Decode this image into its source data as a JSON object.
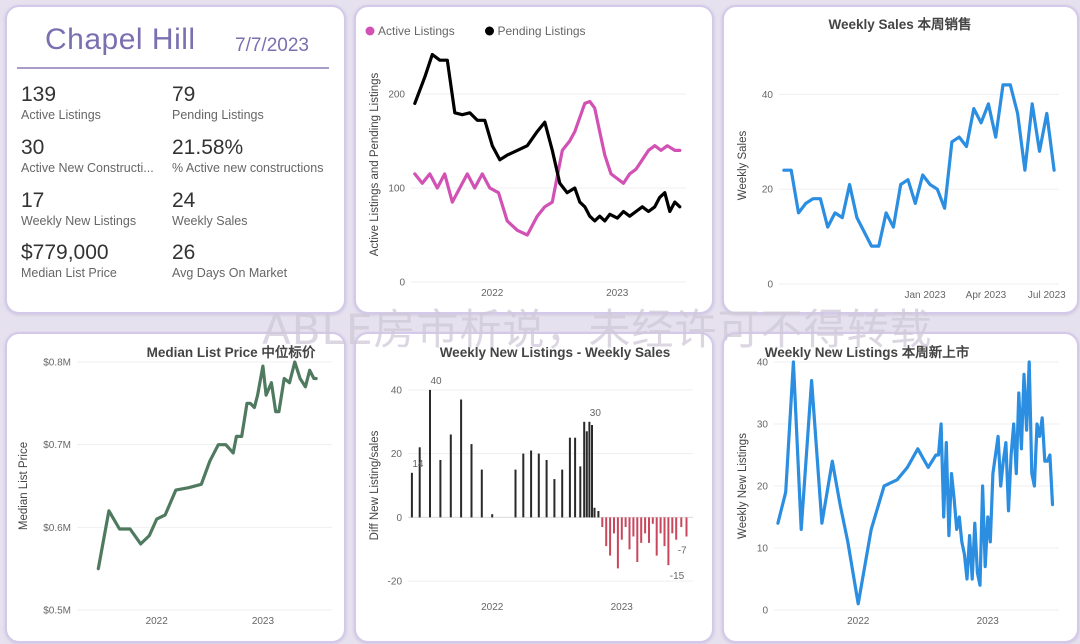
{
  "kpi": {
    "city": "Chapel Hill",
    "date": "7/7/2023",
    "items": [
      {
        "value": "139",
        "label": "Active Listings"
      },
      {
        "value": "79",
        "label": "Pending Listings"
      },
      {
        "value": "30",
        "label": "Active New Constructi..."
      },
      {
        "value": "21.58%",
        "label": "% Active new constructions"
      },
      {
        "value": "17",
        "label": "Weekly New Listings"
      },
      {
        "value": "24",
        "label": "Weekly Sales"
      },
      {
        "value": "$779,000",
        "label": "Median List Price"
      },
      {
        "value": "26",
        "label": "Avg Days On Market"
      }
    ]
  },
  "watermark": "ABLE房市析说，未经许可不得转载",
  "chart_data": [
    {
      "id": "listings",
      "type": "line",
      "title": "",
      "xlabel": "",
      "ylabel": "Active Listings and Pending Listings",
      "legend_position": "top-left",
      "ylim": [
        0,
        250
      ],
      "yticks": [
        0,
        100,
        200
      ],
      "xlim": [
        2021.35,
        2023.55
      ],
      "xticks": [
        {
          "v": 2022.0,
          "l": "2022"
        },
        {
          "v": 2023.0,
          "l": "2023"
        }
      ],
      "series": [
        {
          "name": "Active Listings",
          "color": "#d152b4",
          "x": [
            2021.38,
            2021.44,
            2021.5,
            2021.56,
            2021.62,
            2021.68,
            2021.74,
            2021.8,
            2021.86,
            2021.92,
            2021.98,
            2022.05,
            2022.12,
            2022.2,
            2022.28,
            2022.36,
            2022.42,
            2022.48,
            2022.56,
            2022.62,
            2022.66,
            2022.7,
            2022.74,
            2022.78,
            2022.82,
            2022.86,
            2022.9,
            2022.95,
            2023.0,
            2023.05,
            2023.1,
            2023.15,
            2023.2,
            2023.25,
            2023.3,
            2023.35,
            2023.4,
            2023.46,
            2023.5
          ],
          "y": [
            115,
            105,
            115,
            100,
            115,
            85,
            100,
            115,
            100,
            115,
            100,
            95,
            65,
            55,
            50,
            70,
            80,
            85,
            140,
            150,
            160,
            175,
            190,
            192,
            185,
            160,
            135,
            115,
            110,
            105,
            115,
            120,
            130,
            140,
            145,
            140,
            145,
            140,
            140
          ]
        },
        {
          "name": "Pending Listings",
          "color": "#000000",
          "x": [
            2021.38,
            2021.46,
            2021.52,
            2021.58,
            2021.64,
            2021.7,
            2021.76,
            2021.82,
            2021.88,
            2021.94,
            2022.0,
            2022.06,
            2022.12,
            2022.2,
            2022.28,
            2022.36,
            2022.42,
            2022.48,
            2022.54,
            2022.6,
            2022.66,
            2022.7,
            2022.74,
            2022.78,
            2022.82,
            2022.86,
            2022.9,
            2022.94,
            2023.0,
            2023.05,
            2023.1,
            2023.15,
            2023.2,
            2023.25,
            2023.3,
            2023.34,
            2023.38,
            2023.42,
            2023.46,
            2023.5
          ],
          "y": [
            190,
            218,
            242,
            236,
            236,
            180,
            178,
            180,
            172,
            172,
            145,
            130,
            135,
            140,
            145,
            160,
            170,
            140,
            105,
            95,
            100,
            85,
            80,
            70,
            65,
            70,
            65,
            72,
            68,
            75,
            70,
            75,
            80,
            75,
            80,
            90,
            95,
            75,
            85,
            80
          ]
        }
      ]
    },
    {
      "id": "weekly_sales",
      "type": "line",
      "title": "Weekly Sales 本周销售",
      "xlabel": "",
      "ylabel": "Weekly Sales",
      "ylim": [
        0,
        50
      ],
      "yticks": [
        0,
        20,
        40
      ],
      "xlim": [
        2022.4,
        2023.55
      ],
      "xticks": [
        {
          "v": 2023.0,
          "l": "Jan 2023"
        },
        {
          "v": 2023.25,
          "l": "Apr 2023"
        },
        {
          "v": 2023.5,
          "l": "Jul 2023"
        }
      ],
      "series": [
        {
          "name": "",
          "color": "#2b8ee0",
          "x": [
            2022.42,
            2022.45,
            2022.48,
            2022.51,
            2022.54,
            2022.57,
            2022.6,
            2022.63,
            2022.66,
            2022.69,
            2022.72,
            2022.75,
            2022.78,
            2022.81,
            2022.84,
            2022.87,
            2022.9,
            2022.93,
            2022.96,
            2022.99,
            2023.02,
            2023.05,
            2023.08,
            2023.11,
            2023.14,
            2023.17,
            2023.2,
            2023.23,
            2023.26,
            2023.29,
            2023.32,
            2023.35,
            2023.38,
            2023.41,
            2023.44,
            2023.47,
            2023.5,
            2023.53
          ],
          "y": [
            24,
            24,
            15,
            17,
            18,
            18,
            12,
            15,
            14,
            21,
            14,
            11,
            8,
            8,
            15,
            12,
            21,
            22,
            17,
            23,
            21,
            20,
            16,
            30,
            31,
            29,
            37,
            34,
            38,
            31,
            42,
            42,
            36,
            24,
            38,
            28,
            36,
            24
          ]
        }
      ]
    },
    {
      "id": "median_price",
      "type": "line",
      "title": "Median List Price 中位标价",
      "xlabel": "",
      "ylabel": "Median List Price",
      "ylim": [
        0.5,
        0.8
      ],
      "yticks": [
        {
          "v": 0.5,
          "l": "$0.5M"
        },
        {
          "v": 0.6,
          "l": "$0.6M"
        },
        {
          "v": 0.7,
          "l": "$0.7M"
        },
        {
          "v": 0.8,
          "l": "$0.8M"
        }
      ],
      "xlim": [
        2021.25,
        2023.65
      ],
      "xticks": [
        {
          "v": 2022.0,
          "l": "2022"
        },
        {
          "v": 2023.0,
          "l": "2023"
        }
      ],
      "series": [
        {
          "name": "",
          "color": "#4f7a60",
          "x": [
            2021.45,
            2021.55,
            2021.65,
            2021.75,
            2021.85,
            2021.93,
            2022.0,
            2022.08,
            2022.18,
            2022.3,
            2022.42,
            2022.5,
            2022.58,
            2022.65,
            2022.72,
            2022.75,
            2022.8,
            2022.85,
            2022.88,
            2022.92,
            2022.95,
            2023.0,
            2023.03,
            2023.08,
            2023.12,
            2023.15,
            2023.2,
            2023.25,
            2023.3,
            2023.35,
            2023.4,
            2023.44,
            2023.48,
            2023.5
          ],
          "y": [
            0.55,
            0.62,
            0.598,
            0.598,
            0.58,
            0.59,
            0.61,
            0.615,
            0.645,
            0.648,
            0.652,
            0.68,
            0.7,
            0.7,
            0.69,
            0.71,
            0.71,
            0.75,
            0.75,
            0.745,
            0.76,
            0.795,
            0.76,
            0.775,
            0.74,
            0.74,
            0.78,
            0.775,
            0.8,
            0.78,
            0.77,
            0.79,
            0.78,
            0.78
          ]
        }
      ]
    },
    {
      "id": "diff",
      "type": "bar",
      "title": "Weekly New Listings - Weekly Sales",
      "xlabel": "",
      "ylabel": "Diff New Listing/sales",
      "ylim": [
        -25,
        45
      ],
      "yticks": [
        -20,
        0,
        20,
        40
      ],
      "xlim": [
        2021.35,
        2023.55
      ],
      "xticks": [
        {
          "v": 2022.0,
          "l": "2022"
        },
        {
          "v": 2023.0,
          "l": "2023"
        }
      ],
      "positive_color": "#2a2a2a",
      "negative_color": "#c9475d",
      "data_labels": [
        {
          "x": 2021.38,
          "y": 14,
          "text": "14"
        },
        {
          "x": 2021.52,
          "y": 40,
          "text": "40"
        },
        {
          "x": 2022.75,
          "y": 30,
          "text": "30"
        },
        {
          "x": 2023.42,
          "y": -7,
          "text": "-7"
        },
        {
          "x": 2023.38,
          "y": -15,
          "text": "-15"
        }
      ],
      "x": [
        2021.38,
        2021.44,
        2021.52,
        2021.6,
        2021.68,
        2021.76,
        2021.84,
        2021.92,
        2022.0,
        2022.18,
        2022.24,
        2022.3,
        2022.36,
        2022.42,
        2022.48,
        2022.54,
        2022.6,
        2022.64,
        2022.68,
        2022.71,
        2022.73,
        2022.75,
        2022.77,
        2022.79,
        2022.82,
        2022.85,
        2022.88,
        2022.91,
        2022.94,
        2022.97,
        2023.0,
        2023.03,
        2023.06,
        2023.09,
        2023.12,
        2023.15,
        2023.18,
        2023.21,
        2023.24,
        2023.27,
        2023.3,
        2023.33,
        2023.36,
        2023.39,
        2023.42,
        2023.46,
        2023.5
      ],
      "y": [
        14,
        22,
        40,
        18,
        26,
        37,
        23,
        15,
        1,
        15,
        20,
        21,
        20,
        18,
        12,
        15,
        25,
        25,
        16,
        30,
        27,
        30,
        29,
        3,
        2,
        -3,
        -9,
        -12,
        -5,
        -16,
        -7,
        -3,
        -10,
        -6,
        -14,
        -8,
        -5,
        -8,
        -2,
        -12,
        -5,
        -9,
        -15,
        -5,
        -7,
        -3,
        -6
      ]
    },
    {
      "id": "new_listings",
      "type": "line",
      "title": "Weekly New Listings 本周新上市",
      "xlabel": "",
      "ylabel": "Weekly New Listings",
      "ylim": [
        0,
        40
      ],
      "yticks": [
        0,
        10,
        20,
        30,
        40
      ],
      "xlim": [
        2021.35,
        2023.55
      ],
      "xticks": [
        {
          "v": 2022.0,
          "l": "2022"
        },
        {
          "v": 2023.0,
          "l": "2023"
        }
      ],
      "series": [
        {
          "name": "",
          "color": "#2b8ee0",
          "x": [
            2021.38,
            2021.44,
            2021.5,
            2021.56,
            2021.64,
            2021.72,
            2021.8,
            2021.86,
            2021.92,
            2022.0,
            2022.1,
            2022.2,
            2022.3,
            2022.38,
            2022.46,
            2022.54,
            2022.6,
            2022.62,
            2022.64,
            2022.66,
            2022.68,
            2022.7,
            2022.72,
            2022.74,
            2022.76,
            2022.78,
            2022.8,
            2022.82,
            2022.84,
            2022.86,
            2022.88,
            2022.9,
            2022.92,
            2022.94,
            2022.96,
            2022.98,
            2023.0,
            2023.02,
            2023.04,
            2023.06,
            2023.08,
            2023.1,
            2023.12,
            2023.14,
            2023.16,
            2023.18,
            2023.2,
            2023.22,
            2023.24,
            2023.26,
            2023.28,
            2023.3,
            2023.32,
            2023.34,
            2023.36,
            2023.38,
            2023.4,
            2023.42,
            2023.44,
            2023.46,
            2023.48,
            2023.5
          ],
          "y": [
            14,
            19,
            40,
            13,
            37,
            14,
            24,
            17,
            11,
            1,
            13,
            20,
            21,
            23,
            26,
            23,
            25,
            25,
            30,
            15,
            27,
            12,
            22,
            18,
            13,
            15,
            11,
            9,
            5,
            12,
            5,
            14,
            6,
            4,
            20,
            7,
            15,
            11,
            22,
            25,
            28,
            20,
            24,
            27,
            16,
            25,
            30,
            22,
            35,
            26,
            38,
            29,
            40,
            22,
            20,
            30,
            28,
            31,
            24,
            24,
            25,
            17
          ]
        }
      ]
    }
  ]
}
